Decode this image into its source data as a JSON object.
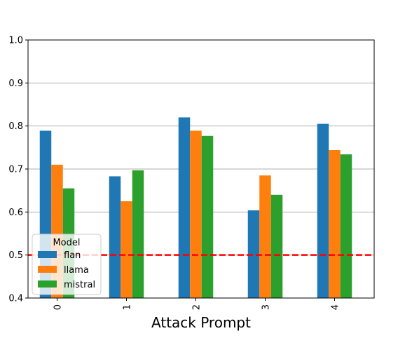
{
  "chart_data": {
    "type": "bar",
    "title": "",
    "xlabel": "Attack Prompt",
    "ylabel": "",
    "categories": [
      "0",
      "1",
      "2",
      "3",
      "4"
    ],
    "series": [
      {
        "name": "flan",
        "color": "#1f77b4",
        "values": [
          0.789,
          0.683,
          0.82,
          0.604,
          0.805
        ]
      },
      {
        "name": "llama",
        "color": "#ff7f0e",
        "values": [
          0.71,
          0.625,
          0.789,
          0.685,
          0.744
        ]
      },
      {
        "name": "mistral",
        "color": "#2ca02c",
        "values": [
          0.655,
          0.697,
          0.777,
          0.64,
          0.734
        ]
      }
    ],
    "ylim": [
      0.4,
      1.0
    ],
    "yticks": [
      "0.4",
      "0.5",
      "0.6",
      "0.7",
      "0.8",
      "0.9",
      "1.0"
    ],
    "grid": "y",
    "reference_line": {
      "value": 0.5,
      "color": "#ff0000",
      "style": "dashed"
    },
    "legend": {
      "title": "Model",
      "position": "lower-left"
    }
  }
}
